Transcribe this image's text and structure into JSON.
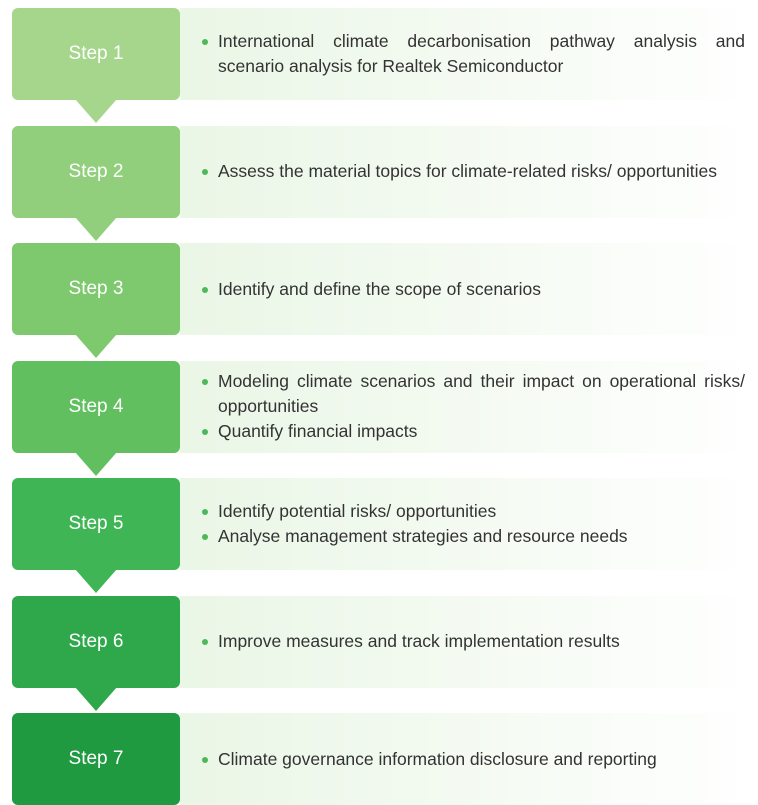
{
  "steps": [
    {
      "label": "Step 1",
      "items": [
        "International climate decarbonisation pathway analysis and scenario analysis for Realtek Semiconductor"
      ]
    },
    {
      "label": "Step 2",
      "items": [
        "Assess the material topics for climate-related risks/ opportunities"
      ]
    },
    {
      "label": "Step 3",
      "items": [
        "Identify and define the scope of scenarios"
      ]
    },
    {
      "label": "Step 4",
      "items": [
        "Modeling climate scenarios and their impact on operational risks/ opportunities",
        "Quantify financial impacts"
      ]
    },
    {
      "label": "Step 5",
      "items": [
        "Identify potential risks/ opportunities",
        "Analyse management strategies and resource needs"
      ]
    },
    {
      "label": "Step 6",
      "items": [
        "Improve measures and track implementation results"
      ]
    },
    {
      "label": "Step 7",
      "items": [
        "Climate governance information disclosure and reporting"
      ]
    }
  ]
}
